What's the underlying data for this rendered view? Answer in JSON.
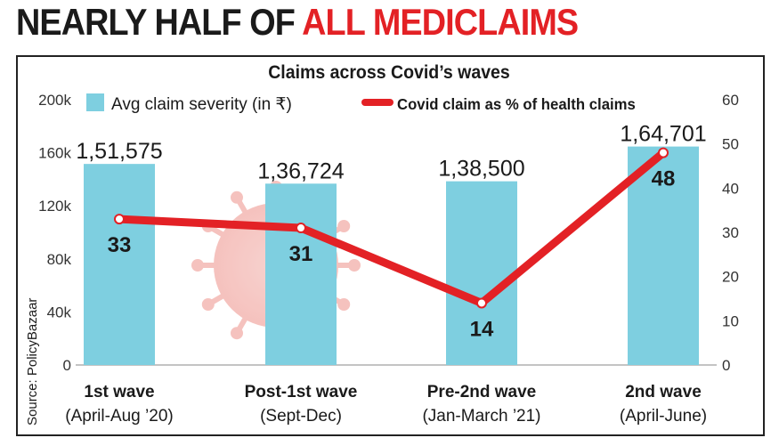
{
  "headline": {
    "part1": "NEARLY HALF OF ",
    "part2": "ALL MEDICLAIMS"
  },
  "source": "Source: PolicyBazaar",
  "chart_data": {
    "type": "bar+line",
    "title": "Claims across Covid’s waves",
    "categories": [
      [
        "1st wave",
        "(April-Aug ’20)"
      ],
      [
        "Post-1st wave",
        "(Sept-Dec)"
      ],
      [
        "Pre-2nd wave",
        "(Jan-March ’21)"
      ],
      [
        "2nd wave",
        "(April-June)"
      ]
    ],
    "series": [
      {
        "name": "Avg claim severity (in ₹)",
        "type": "bar",
        "axis": "left",
        "color": "#7ecfe0",
        "values": [
          151575,
          136724,
          138500,
          164701
        ],
        "labels": [
          "1,51,575",
          "1,36,724",
          "1,38,500",
          "1,64,701"
        ]
      },
      {
        "name": "Covid claim as % of health claims",
        "type": "line",
        "axis": "right",
        "color": "#e32125",
        "values": [
          33,
          31,
          14,
          48
        ],
        "labels": [
          "33",
          "31",
          "14",
          "48"
        ]
      }
    ],
    "y_left": {
      "lim": [
        0,
        200000
      ],
      "ticks": [
        0,
        40000,
        80000,
        120000,
        160000,
        200000
      ],
      "tick_labels": [
        "0",
        "40k",
        "80k",
        "120k",
        "160k",
        "200k"
      ]
    },
    "y_right": {
      "lim": [
        0,
        60
      ],
      "ticks": [
        0,
        10,
        20,
        30,
        40,
        50,
        60
      ],
      "tick_labels": [
        "0",
        "10",
        "20",
        "30",
        "40",
        "50",
        "60"
      ]
    },
    "grid": false,
    "legend": "top"
  }
}
